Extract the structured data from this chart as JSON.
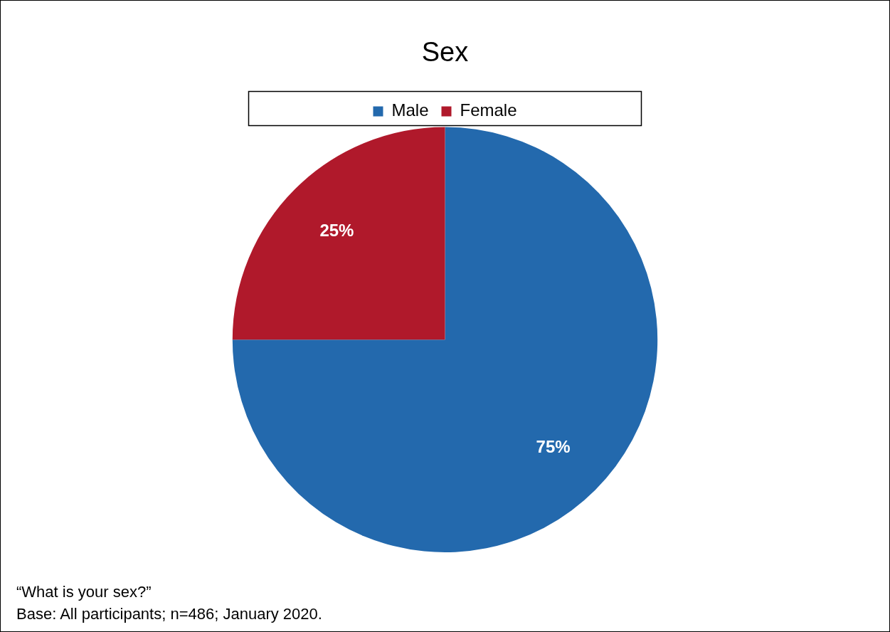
{
  "chart_data": {
    "type": "pie",
    "title": "Sex",
    "categories": [
      "Male",
      "Female"
    ],
    "values": [
      75,
      25
    ],
    "colors": [
      "#2369ad",
      "#b0192b"
    ],
    "value_labels": [
      "75%",
      "25%"
    ],
    "legend": "top",
    "annotations": [
      "“What is your sex?”",
      "Base: All participants;  n=486; January 2020."
    ]
  }
}
